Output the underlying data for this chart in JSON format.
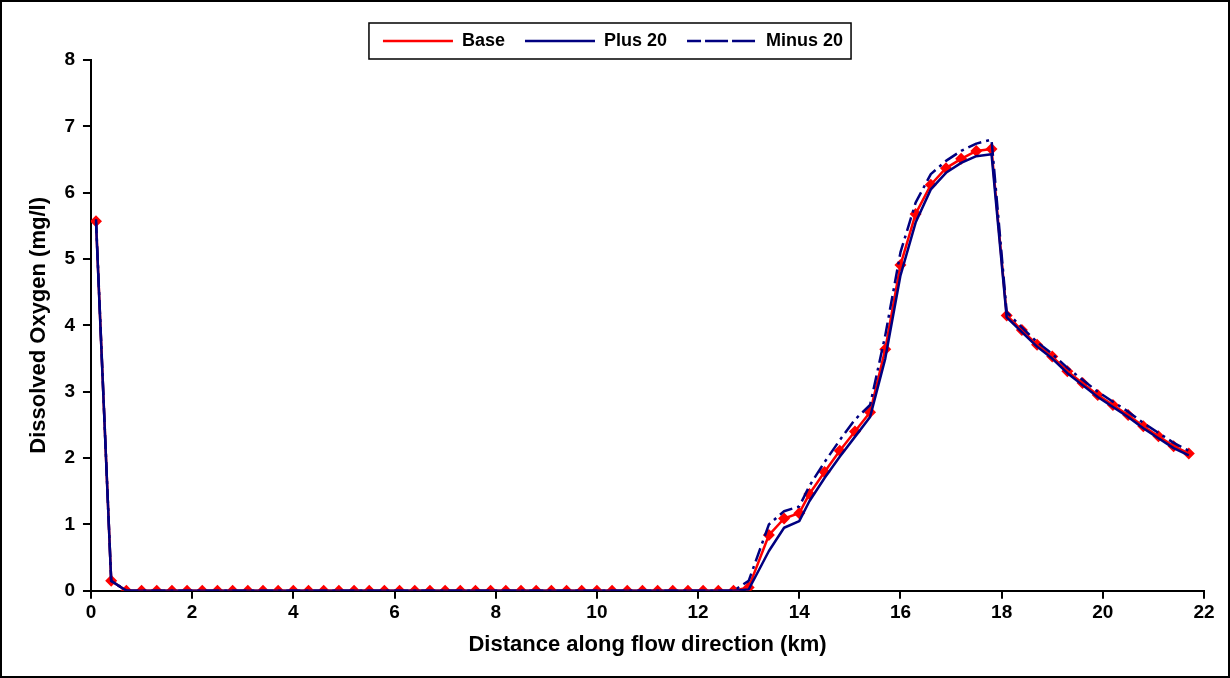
{
  "chart_data": {
    "type": "line",
    "xlabel": "Distance along flow direction (km)",
    "ylabel": "Dissolved Oxygen (mg/l)",
    "x": [
      0.1,
      0.4,
      0.7,
      1.0,
      1.3,
      1.6,
      1.9,
      2.2,
      2.5,
      2.8,
      3.1,
      3.4,
      3.7,
      4.0,
      4.3,
      4.6,
      4.9,
      5.2,
      5.5,
      5.8,
      6.1,
      6.4,
      6.7,
      7.0,
      7.3,
      7.6,
      7.9,
      8.2,
      8.5,
      8.8,
      9.1,
      9.4,
      9.7,
      10.0,
      10.3,
      10.6,
      10.9,
      11.2,
      11.5,
      11.8,
      12.1,
      12.4,
      12.7,
      13.0,
      13.4,
      13.7,
      14.0,
      14.2,
      14.5,
      14.8,
      15.1,
      15.4,
      15.7,
      16.0,
      16.3,
      16.6,
      16.9,
      17.2,
      17.5,
      17.8,
      18.1,
      18.4,
      18.7,
      19.0,
      19.3,
      19.6,
      19.9,
      20.2,
      20.5,
      20.8,
      21.1,
      21.4,
      21.7
    ],
    "series": [
      {
        "name": "Base",
        "color": "#ff0000",
        "marker": "diamond",
        "line_style": "solid",
        "values": [
          5.57,
          0.15,
          0,
          0,
          0,
          0,
          0,
          0,
          0,
          0,
          0,
          0,
          0,
          0,
          0,
          0,
          0,
          0,
          0,
          0,
          0,
          0,
          0,
          0,
          0,
          0,
          0,
          0,
          0,
          0,
          0,
          0,
          0,
          0,
          0,
          0,
          0,
          0,
          0,
          0,
          0,
          0,
          0,
          0.05,
          0.84,
          1.09,
          1.17,
          1.46,
          1.79,
          2.11,
          2.4,
          2.69,
          3.64,
          4.91,
          5.68,
          6.12,
          6.37,
          6.51,
          6.63,
          6.66,
          4.15,
          3.93,
          3.71,
          3.53,
          3.31,
          3.13,
          2.95,
          2.8,
          2.65,
          2.48,
          2.33,
          2.18,
          2.07
        ]
      },
      {
        "name": "Plus 20",
        "color": "#000080",
        "marker": "none",
        "line_style": "solid",
        "values": [
          5.55,
          0.15,
          0,
          0,
          0,
          0,
          0,
          0,
          0,
          0,
          0,
          0,
          0,
          0,
          0,
          0,
          0,
          0,
          0,
          0,
          0,
          0,
          0,
          0,
          0,
          0,
          0,
          0,
          0,
          0,
          0,
          0,
          0,
          0,
          0,
          0,
          0,
          0,
          0,
          0,
          0,
          0,
          0,
          0.02,
          0.6,
          0.95,
          1.05,
          1.35,
          1.7,
          2.02,
          2.32,
          2.62,
          3.5,
          4.75,
          5.55,
          6.05,
          6.3,
          6.45,
          6.55,
          6.58,
          4.12,
          3.9,
          3.68,
          3.5,
          3.28,
          3.1,
          2.92,
          2.77,
          2.62,
          2.45,
          2.3,
          2.15,
          2.04
        ]
      },
      {
        "name": "Minus 20",
        "color": "#000080",
        "marker": "none",
        "line_style": "dashed",
        "values": [
          5.6,
          0.15,
          0,
          0,
          0,
          0,
          0,
          0,
          0,
          0,
          0,
          0,
          0,
          0,
          0,
          0,
          0,
          0,
          0,
          0,
          0,
          0,
          0,
          0,
          0,
          0,
          0,
          0,
          0,
          0,
          0,
          0,
          0,
          0,
          0,
          0,
          0,
          0,
          0,
          0,
          0,
          0,
          0,
          0.15,
          1.0,
          1.2,
          1.27,
          1.58,
          1.94,
          2.27,
          2.58,
          2.8,
          3.85,
          5.1,
          5.85,
          6.28,
          6.48,
          6.63,
          6.74,
          6.8,
          4.2,
          3.97,
          3.75,
          3.57,
          3.36,
          3.18,
          3.0,
          2.85,
          2.7,
          2.53,
          2.38,
          2.23,
          2.11
        ]
      }
    ],
    "xlim": [
      0,
      22
    ],
    "xticks": [
      0,
      2,
      4,
      6,
      8,
      10,
      12,
      14,
      16,
      18,
      20,
      22
    ],
    "ylim": [
      0,
      8
    ],
    "yticks": [
      0,
      1,
      2,
      3,
      4,
      5,
      6,
      7,
      8
    ],
    "grid": false,
    "legend": "top"
  }
}
